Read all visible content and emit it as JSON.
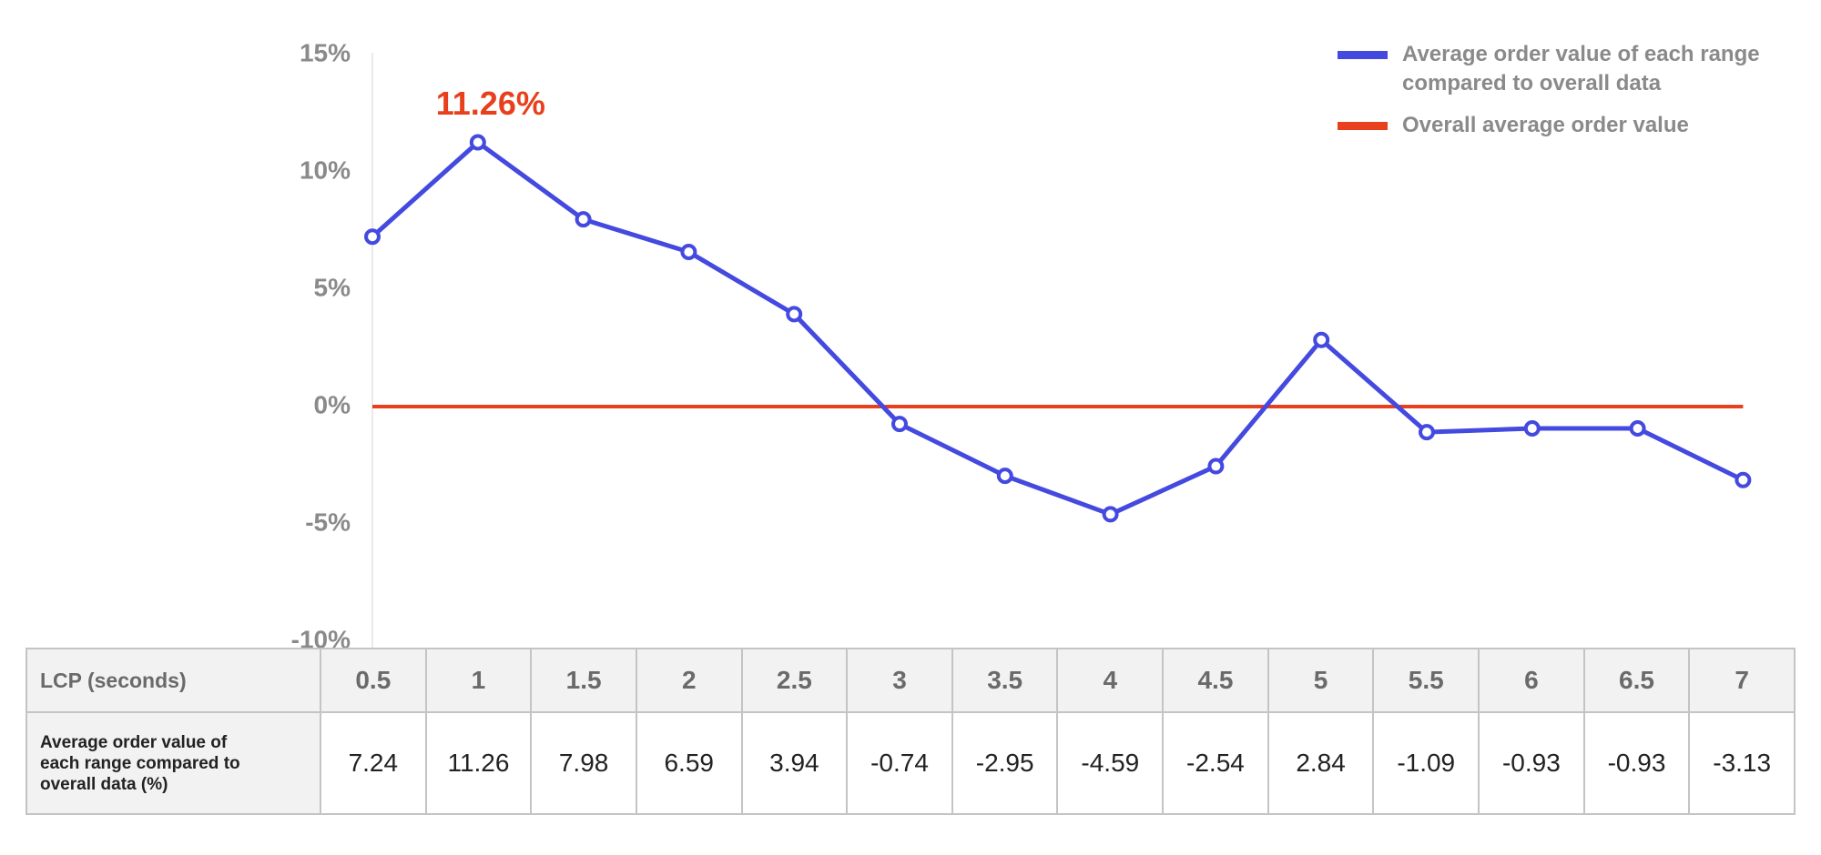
{
  "chart_data": {
    "type": "line",
    "categories": [
      "0.5",
      "1",
      "1.5",
      "2",
      "2.5",
      "3",
      "3.5",
      "4",
      "4.5",
      "5",
      "5.5",
      "6",
      "6.5",
      "7"
    ],
    "series": [
      {
        "name": "Average order value of each range compared to overall data",
        "color": "#4449e0",
        "values": [
          7.24,
          11.26,
          7.98,
          6.59,
          3.94,
          -0.74,
          -2.95,
          -4.59,
          -2.54,
          2.84,
          -1.09,
          -0.93,
          -0.93,
          -3.13
        ],
        "value_labels": [
          null,
          "11.26%",
          null,
          null,
          null,
          null,
          null,
          null,
          null,
          null,
          null,
          null,
          null,
          null
        ],
        "value_label_color": "#e8401c"
      },
      {
        "name": "Overall average order value",
        "color": "#e8401c",
        "values": [
          0,
          0,
          0,
          0,
          0,
          0,
          0,
          0,
          0,
          0,
          0,
          0,
          0,
          0
        ]
      }
    ],
    "ylim": [
      -10,
      15
    ],
    "yticks": [
      {
        "value": -10,
        "label": "-10%"
      },
      {
        "value": -5,
        "label": "-5%"
      },
      {
        "value": 0,
        "label": "0%"
      },
      {
        "value": 5,
        "label": "5%"
      },
      {
        "value": 10,
        "label": "10%"
      },
      {
        "value": 15,
        "label": "15%"
      }
    ],
    "legend": "top-right",
    "xlabel": "LCP (seconds)",
    "table_label": "Average order value of each range compared to overall data (%)"
  }
}
